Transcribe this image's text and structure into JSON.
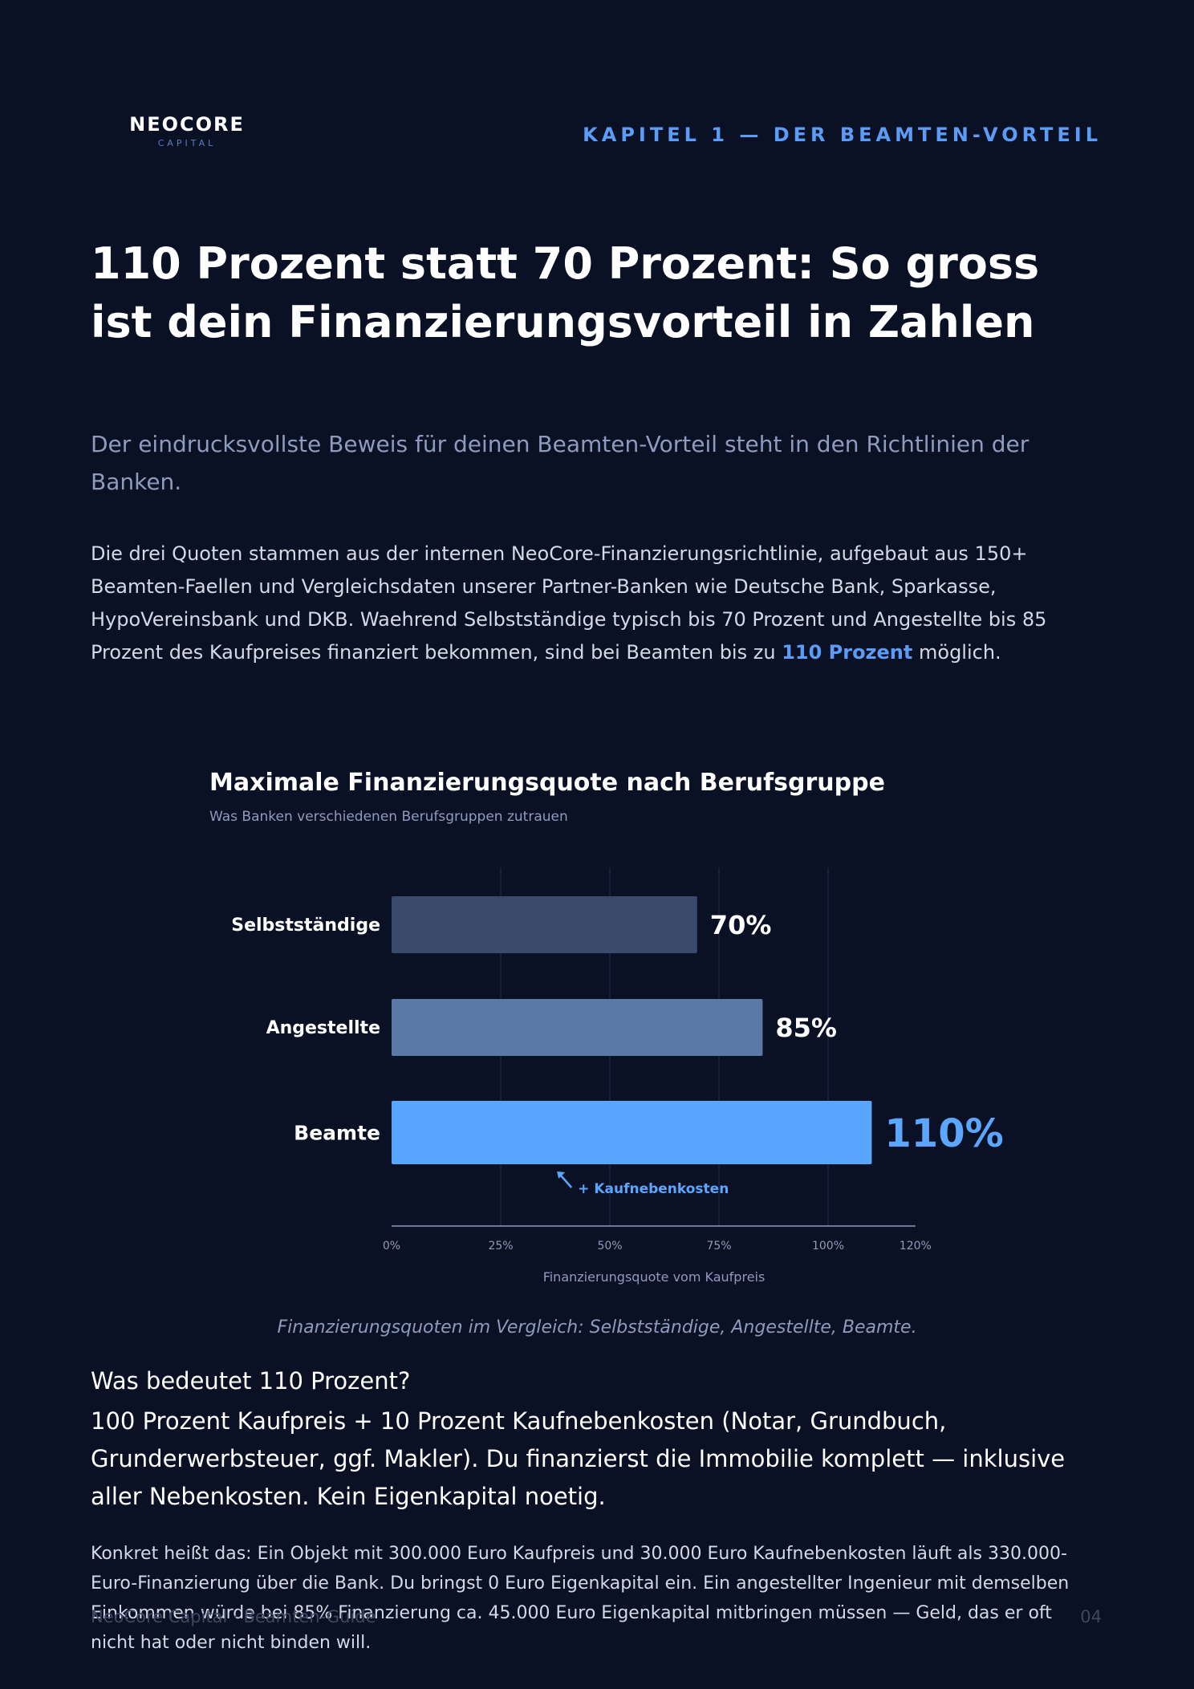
{
  "header": {
    "logo_name": "NEOCORE",
    "logo_sub": "CAPITAL",
    "chapter": "KAPITEL 1 — DER BEAMTEN-VORTEIL"
  },
  "title": "110 Prozent statt 70 Prozent: So gross ist dein Finanzierungsvorteil in Zahlen",
  "subtitle": "Der eindrucksvollste Beweis für deinen Beamten-Vorteil steht in den Richtlinien der Banken.",
  "body1": {
    "text": "Die drei Quoten stammen aus der internen NeoCore-Finanzierungsrichtlinie, aufgebaut aus 150+ Beamten-Faellen und Vergleichsdaten unserer Partner-Banken wie Deutsche Bank, Sparkasse, HypoVereinsbank und DKB. Waehrend Selbstständige typisch bis 70 Prozent und Angestellte bis 85 Prozent des Kaufpreises finanziert bekommen, sind bei Beamten bis zu",
    "highlight": "110 Prozent",
    "tail": "möglich."
  },
  "chart_data": {
    "type": "bar",
    "orientation": "horizontal",
    "title": "Maximale Finanzierungsquote nach Berufsgruppe",
    "subtitle": "Was Banken verschiedenen Berufsgruppen zutrauen",
    "categories": [
      "Selbstständige",
      "Angestellte",
      "Beamte"
    ],
    "values": [
      70,
      85,
      110
    ],
    "value_labels": [
      "70%",
      "85%",
      "110%"
    ],
    "xlabel": "Finanzierungsquote vom Kaufpreis",
    "xlim": [
      0,
      120
    ],
    "x_ticks": [
      "0%",
      "25%",
      "50%",
      "75%",
      "100%",
      "120%"
    ],
    "annotation": "+ Kaufnebenkosten",
    "colors": [
      "#3a4a6b",
      "#5a79a6",
      "#58a6ff"
    ],
    "grid": true
  },
  "caption": "Finanzierungsquoten im Vergleich: Selbstständige, Angestellte, Beamte.",
  "question": {
    "head": "Was bedeutet 110 Prozent?",
    "body": "100 Prozent Kaufpreis + 10 Prozent Kaufnebenkosten (Notar, Grundbuch, Grunderwerbsteuer, ggf. Makler). Du finanzierst die Immobilie komplett — inklusive aller Nebenkosten. Kein Eigenkapital noetig."
  },
  "body2": "Konkret heißt das: Ein Objekt mit 300.000 Euro Kaufpreis und 30.000 Euro Kaufnebenkosten läuft als 330.000-Euro-Finanzierung über die Bank. Du bringst 0 Euro Eigenkapital ein. Ein angestellter Ingenieur mit demselben Einkommen würde bei 85% Finanzierung ca. 45.000 Euro Eigenkapital mitbringen müssen — Geld, das er oft nicht hat oder nicht binden will.",
  "footer": {
    "left": "NeoCore Capital · Beamten-Guide",
    "page": "04"
  }
}
